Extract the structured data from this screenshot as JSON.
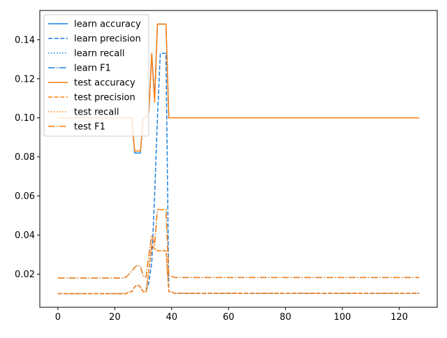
{
  "chart_data": {
    "type": "line",
    "title": "",
    "xlabel": "",
    "ylabel": "",
    "xlim": [
      -6.35,
      133.35
    ],
    "ylim": [
      0.00305,
      0.15495
    ],
    "xticks": [
      0,
      20,
      40,
      60,
      80,
      100,
      120
    ],
    "yticks": [
      0.02,
      0.04,
      0.06,
      0.08,
      0.1,
      0.12,
      0.14
    ],
    "ytick_labels": [
      "0.02",
      "0.04",
      "0.06",
      "0.08",
      "0.10",
      "0.12",
      "0.14"
    ],
    "grid": false,
    "legend_position": "top-left",
    "colors": {
      "learn": "#1a80e0",
      "test": "#ff7f0e"
    },
    "series": [
      {
        "name": "learn accuracy",
        "color": "#1a80e0",
        "dash": "solid",
        "points": [
          [
            0,
            0.1
          ],
          [
            26,
            0.1
          ],
          [
            27,
            0.082
          ],
          [
            29,
            0.082
          ],
          [
            30,
            0.1
          ],
          [
            31,
            0.1
          ],
          [
            32,
            0.103
          ],
          [
            33,
            0.133
          ],
          [
            34,
            0.11
          ],
          [
            35,
            0.148
          ],
          [
            38,
            0.148
          ],
          [
            39,
            0.1
          ],
          [
            127,
            0.1
          ]
        ]
      },
      {
        "name": "learn precision",
        "color": "#1a80e0",
        "dash": "dashed",
        "points": [
          [
            0,
            0.01
          ],
          [
            24,
            0.01
          ],
          [
            25,
            0.011
          ],
          [
            26,
            0.011
          ],
          [
            27,
            0.0135
          ],
          [
            28,
            0.0145
          ],
          [
            29,
            0.0135
          ],
          [
            30,
            0.011
          ],
          [
            31,
            0.011
          ],
          [
            32,
            0.016
          ],
          [
            33,
            0.026
          ],
          [
            34,
            0.06
          ],
          [
            35,
            0.1
          ],
          [
            36,
            0.133
          ],
          [
            38,
            0.133
          ],
          [
            39,
            0.011
          ],
          [
            40,
            0.011
          ],
          [
            41,
            0.0102
          ],
          [
            127,
            0.0102
          ]
        ]
      },
      {
        "name": "learn recall",
        "color": "#1a80e0",
        "dash": "dotted",
        "points": [
          [
            0,
            0.01
          ],
          [
            24,
            0.01
          ],
          [
            25,
            0.011
          ],
          [
            26,
            0.011
          ],
          [
            27,
            0.0135
          ],
          [
            28,
            0.0145
          ],
          [
            29,
            0.0135
          ],
          [
            30,
            0.011
          ],
          [
            31,
            0.011
          ],
          [
            32,
            0.022
          ],
          [
            33,
            0.035
          ],
          [
            34,
            0.033
          ],
          [
            35,
            0.032
          ],
          [
            38,
            0.032
          ],
          [
            39,
            0.011
          ],
          [
            40,
            0.011
          ],
          [
            41,
            0.0102
          ],
          [
            127,
            0.0102
          ]
        ]
      },
      {
        "name": "learn F1",
        "color": "#1a80e0",
        "dash": "dashdot",
        "points": [
          [
            0,
            0.018
          ],
          [
            23,
            0.018
          ],
          [
            24,
            0.0185
          ],
          [
            26,
            0.0215
          ],
          [
            27,
            0.0235
          ],
          [
            28,
            0.0245
          ],
          [
            29,
            0.024
          ],
          [
            30,
            0.019
          ],
          [
            31,
            0.0185
          ],
          [
            32,
            0.03
          ],
          [
            33,
            0.04
          ],
          [
            34,
            0.035
          ],
          [
            35,
            0.053
          ],
          [
            38,
            0.053
          ],
          [
            39,
            0.019
          ],
          [
            40,
            0.019
          ],
          [
            41,
            0.0183
          ],
          [
            127,
            0.0183
          ]
        ]
      },
      {
        "name": "test accuracy",
        "color": "#ff7f0e",
        "dash": "solid",
        "points": [
          [
            0,
            0.1
          ],
          [
            26,
            0.1
          ],
          [
            27,
            0.083
          ],
          [
            29,
            0.083
          ],
          [
            30,
            0.1
          ],
          [
            31,
            0.1
          ],
          [
            32,
            0.103
          ],
          [
            33,
            0.133
          ],
          [
            34,
            0.108
          ],
          [
            35,
            0.148
          ],
          [
            38,
            0.148
          ],
          [
            39,
            0.1
          ],
          [
            127,
            0.1
          ]
        ]
      },
      {
        "name": "test precision",
        "color": "#ff7f0e",
        "dash": "dashed",
        "points": [
          [
            0,
            0.01
          ],
          [
            24,
            0.01
          ],
          [
            25,
            0.011
          ],
          [
            26,
            0.011
          ],
          [
            27,
            0.0135
          ],
          [
            28,
            0.0145
          ],
          [
            29,
            0.0135
          ],
          [
            30,
            0.011
          ],
          [
            31,
            0.011
          ],
          [
            32,
            0.022
          ],
          [
            33,
            0.035
          ],
          [
            34,
            0.033
          ],
          [
            35,
            0.032
          ],
          [
            38,
            0.032
          ],
          [
            39,
            0.011
          ],
          [
            40,
            0.011
          ],
          [
            41,
            0.0102
          ],
          [
            127,
            0.0102
          ]
        ]
      },
      {
        "name": "test recall",
        "color": "#ff7f0e",
        "dash": "dotted",
        "points": [
          [
            0,
            0.01
          ],
          [
            24,
            0.01
          ],
          [
            25,
            0.011
          ],
          [
            26,
            0.011
          ],
          [
            27,
            0.0135
          ],
          [
            28,
            0.0145
          ],
          [
            29,
            0.0135
          ],
          [
            30,
            0.011
          ],
          [
            31,
            0.011
          ],
          [
            32,
            0.022
          ],
          [
            33,
            0.035
          ],
          [
            34,
            0.033
          ],
          [
            35,
            0.032
          ],
          [
            38,
            0.032
          ],
          [
            39,
            0.011
          ],
          [
            40,
            0.011
          ],
          [
            41,
            0.0102
          ],
          [
            127,
            0.0102
          ]
        ]
      },
      {
        "name": "test F1",
        "color": "#ff7f0e",
        "dash": "dashdot",
        "points": [
          [
            0,
            0.018
          ],
          [
            23,
            0.018
          ],
          [
            24,
            0.0185
          ],
          [
            26,
            0.0215
          ],
          [
            27,
            0.0235
          ],
          [
            28,
            0.0245
          ],
          [
            29,
            0.024
          ],
          [
            30,
            0.019
          ],
          [
            31,
            0.0185
          ],
          [
            32,
            0.03
          ],
          [
            33,
            0.04
          ],
          [
            34,
            0.035
          ],
          [
            35,
            0.053
          ],
          [
            38,
            0.053
          ],
          [
            39,
            0.019
          ],
          [
            40,
            0.019
          ],
          [
            41,
            0.0183
          ],
          [
            127,
            0.0183
          ]
        ]
      }
    ]
  }
}
